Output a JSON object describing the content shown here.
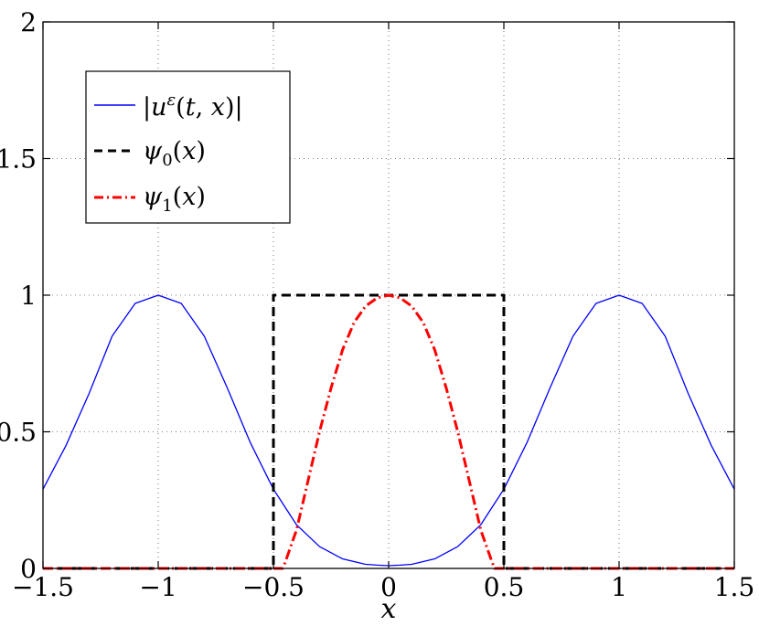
{
  "chart_data": {
    "type": "line",
    "title": "",
    "xlabel": "x",
    "ylabel": "",
    "xlim": [
      -1.5,
      1.5
    ],
    "ylim": [
      0,
      2
    ],
    "x_ticks": [
      -1.5,
      -1,
      -0.5,
      0,
      0.5,
      1,
      1.5
    ],
    "y_ticks": [
      0,
      0.5,
      1,
      1.5,
      2
    ],
    "x_tick_labels": [
      "−1.5",
      "−1",
      "−0.5",
      "0",
      "0.5",
      "1",
      "1.5"
    ],
    "y_tick_labels": [
      "0",
      "0.5",
      "1",
      "1.5",
      "2"
    ],
    "grid": true,
    "legend_position": "top-left",
    "legend": [
      {
        "label": "|u^ε(t, x)|",
        "color": "#0000ff",
        "style": "solid"
      },
      {
        "label": "ψ0(x)",
        "color": "#000000",
        "style": "dashed"
      },
      {
        "label": "ψ1(x)",
        "color": "#ff0000",
        "style": "dash-dot"
      }
    ],
    "series": [
      {
        "name": "|u^ε(t, x)|",
        "color": "#0000ff",
        "style": "solid",
        "x": [
          -1.5,
          -1.4,
          -1.3,
          -1.2,
          -1.1,
          -1.0,
          -0.9,
          -0.8,
          -0.7,
          -0.6,
          -0.5,
          -0.4,
          -0.3,
          -0.2,
          -0.1,
          -0.05,
          0,
          0.05,
          0.1,
          0.2,
          0.3,
          0.4,
          0.5,
          0.6,
          0.7,
          0.8,
          0.9,
          1.0,
          1.1,
          1.2,
          1.3,
          1.4,
          1.5
        ],
        "y": [
          0.29,
          0.45,
          0.64,
          0.85,
          0.97,
          1.0,
          0.97,
          0.85,
          0.66,
          0.46,
          0.29,
          0.16,
          0.08,
          0.035,
          0.015,
          0.012,
          0.01,
          0.012,
          0.015,
          0.035,
          0.08,
          0.16,
          0.29,
          0.46,
          0.66,
          0.85,
          0.97,
          1.0,
          0.97,
          0.85,
          0.64,
          0.45,
          0.29
        ]
      },
      {
        "name": "ψ0(x)",
        "color": "#000000",
        "style": "dashed",
        "x": [
          -1.5,
          -0.5,
          -0.5,
          0.5,
          0.5,
          1.5
        ],
        "y": [
          0,
          0,
          1,
          1,
          0,
          0
        ]
      },
      {
        "name": "ψ1(x)",
        "color": "#ff0000",
        "style": "dash-dot",
        "x": [
          -1.5,
          -0.46,
          -0.45,
          -0.4,
          -0.35,
          -0.3,
          -0.25,
          -0.2,
          -0.15,
          -0.1,
          -0.05,
          0,
          0.05,
          0.1,
          0.15,
          0.2,
          0.25,
          0.3,
          0.35,
          0.4,
          0.45,
          0.46,
          1.5
        ],
        "y": [
          0,
          0,
          0.02,
          0.14,
          0.32,
          0.5,
          0.66,
          0.8,
          0.9,
          0.96,
          0.99,
          1.0,
          0.99,
          0.96,
          0.9,
          0.8,
          0.66,
          0.5,
          0.32,
          0.14,
          0.02,
          0,
          0
        ]
      }
    ]
  }
}
